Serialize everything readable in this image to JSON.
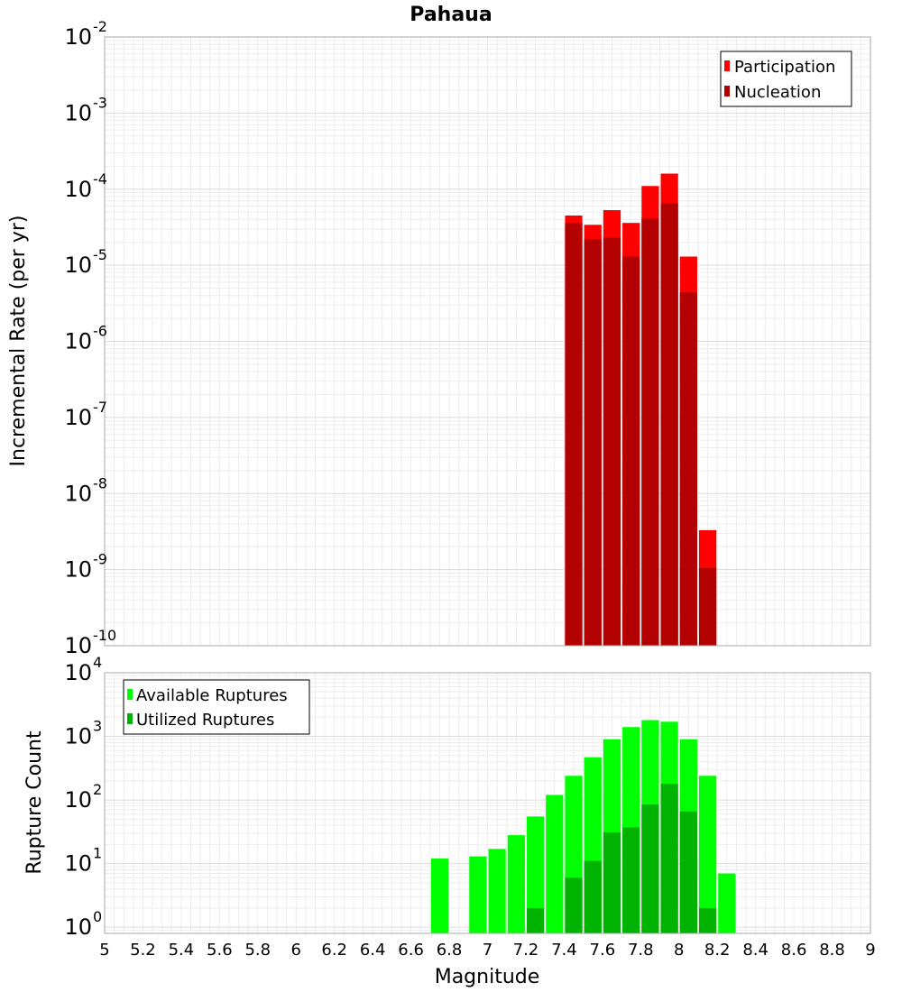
{
  "chart_data": [
    {
      "type": "bar",
      "title": "Pahaua",
      "ylabel": "Incremental Rate (per yr)",
      "xlabel": "",
      "yscale": "log",
      "ylim": [
        1e-10,
        0.01
      ],
      "xlim": [
        5,
        9
      ],
      "y_tick_labels": [
        {
          "base": "10",
          "exp": "-2"
        },
        {
          "base": "10",
          "exp": "-3"
        },
        {
          "base": "10",
          "exp": "-4"
        },
        {
          "base": "10",
          "exp": "-5"
        },
        {
          "base": "10",
          "exp": "-6"
        },
        {
          "base": "10",
          "exp": "-7"
        },
        {
          "base": "10",
          "exp": "-8"
        },
        {
          "base": "10",
          "exp": "-9"
        },
        {
          "base": "10",
          "exp": "-10"
        }
      ],
      "legend_position": "top-right",
      "bar_width": 0.1,
      "series": [
        {
          "name": "Participation",
          "color": "#ff0000",
          "x": [
            7.45,
            7.55,
            7.65,
            7.75,
            7.85,
            7.95,
            8.05,
            8.15
          ],
          "values": [
            4.5e-05,
            3.4e-05,
            5.3e-05,
            3.6e-05,
            0.00011,
            0.00016,
            1.3e-05,
            3.3e-09
          ]
        },
        {
          "name": "Nucleation",
          "color": "#b30000",
          "x": [
            7.45,
            7.55,
            7.65,
            7.75,
            7.85,
            7.95,
            8.05,
            8.15
          ],
          "values": [
            3.6e-05,
            2.2e-05,
            2.3e-05,
            1.3e-05,
            4.1e-05,
            6.5e-05,
            4.4e-06,
            1.05e-09
          ]
        }
      ]
    },
    {
      "type": "bar",
      "ylabel": "Rupture Count",
      "xlabel": "Magnitude",
      "yscale": "log",
      "ylim": [
        0.8,
        10000
      ],
      "xlim": [
        5,
        9
      ],
      "y_tick_labels": [
        {
          "base": "10",
          "exp": "4"
        },
        {
          "base": "10",
          "exp": "3"
        },
        {
          "base": "10",
          "exp": "2"
        },
        {
          "base": "10",
          "exp": "1"
        },
        {
          "base": "10",
          "exp": "0"
        }
      ],
      "x_tick_labels": [
        "5",
        "5.2",
        "5.4",
        "5.6",
        "5.8",
        "6",
        "6.2",
        "6.4",
        "6.6",
        "6.8",
        "7",
        "7.2",
        "7.4",
        "7.6",
        "7.8",
        "8",
        "8.2",
        "8.4",
        "8.6",
        "8.8",
        "9"
      ],
      "legend_position": "top-left",
      "bar_width": 0.1,
      "series": [
        {
          "name": "Available Ruptures",
          "color": "#00ff00",
          "x": [
            6.75,
            6.95,
            7.05,
            7.15,
            7.25,
            7.35,
            7.45,
            7.55,
            7.65,
            7.75,
            7.85,
            7.95,
            8.05,
            8.15,
            8.25
          ],
          "values": [
            12,
            13,
            17,
            28,
            55,
            120,
            240,
            470,
            900,
            1400,
            1800,
            1700,
            900,
            240,
            7
          ]
        },
        {
          "name": "Utilized Ruptures",
          "color": "#00b300",
          "x": [
            7.25,
            7.45,
            7.55,
            7.65,
            7.75,
            7.85,
            7.95,
            8.05,
            8.15
          ],
          "values": [
            2,
            6,
            11,
            31,
            37,
            85,
            180,
            66,
            2
          ]
        }
      ]
    }
  ]
}
